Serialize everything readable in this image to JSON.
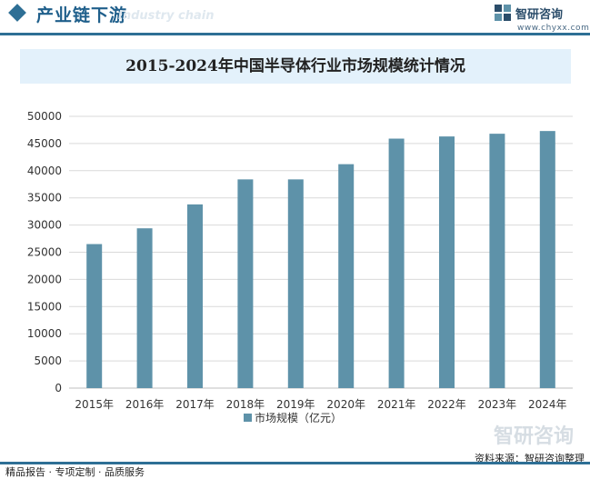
{
  "header": {
    "title": "产业链下游",
    "watermark_text": "Industry chain",
    "brand_name": "智研咨询",
    "brand_url": "www.chyxx.com"
  },
  "colors": {
    "accent": "#2e6f95",
    "bar": "#5e92a9",
    "title_band": "#e3f1fb",
    "grid": "#d9d9d9"
  },
  "chart_data": {
    "type": "bar",
    "title": "2015-2024年中国半导体行业市场规模统计情况",
    "categories": [
      "2015年",
      "2016年",
      "2017年",
      "2018年",
      "2019年",
      "2020年",
      "2021年",
      "2022年",
      "2023年",
      "2024年"
    ],
    "series": [
      {
        "name": "市场规模（亿元）",
        "values": [
          26500,
          29400,
          33800,
          38400,
          38400,
          41200,
          45900,
          46300,
          46800,
          47300
        ]
      }
    ],
    "ylim": [
      0,
      50000
    ],
    "yticks": [
      0,
      5000,
      10000,
      15000,
      20000,
      25000,
      30000,
      35000,
      40000,
      45000,
      50000
    ],
    "grid": true,
    "legend_position": "bottom"
  },
  "watermark": {
    "mark": "智研咨询"
  },
  "footer": {
    "left": "精品报告 · 专项定制 · 品质服务",
    "right": "资料来源：智研咨询整理"
  }
}
